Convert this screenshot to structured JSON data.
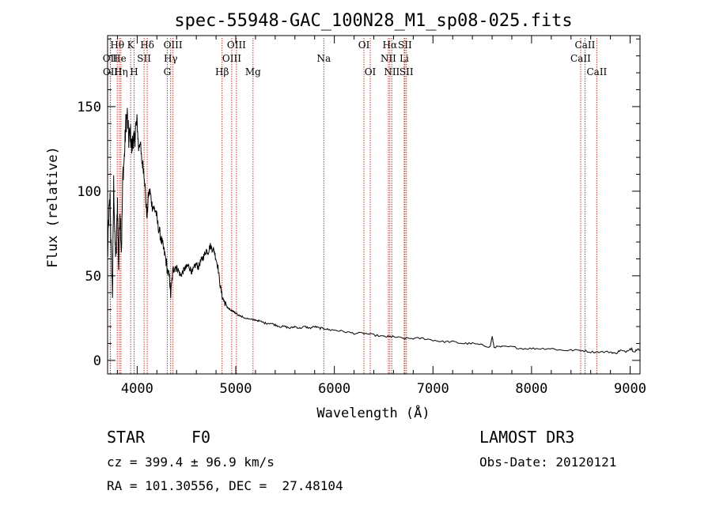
{
  "chart_data": {
    "type": "line",
    "title": "spec-55948-GAC_100N28_M1_sp08-025.fits",
    "xlabel": "Wavelength (Å)",
    "ylabel": "Flux (relative)",
    "xlim": [
      3700,
      9100
    ],
    "ylim": [
      -8,
      192
    ],
    "xticks": [
      4000,
      5000,
      6000,
      7000,
      8000,
      9000
    ],
    "xtick_labels": [
      "4000",
      "5000",
      "6000",
      "7000",
      "8000",
      "9000"
    ],
    "yticks": [
      0,
      50,
      100,
      150
    ],
    "ytick_labels": [
      "0",
      "50",
      "100",
      "150"
    ],
    "series": [
      {
        "name": "flux",
        "x": [
          3700,
          3712,
          3725,
          3737,
          3750,
          3762,
          3775,
          3787,
          3800,
          3812,
          3825,
          3840,
          3855,
          3870,
          3885,
          3900,
          3915,
          3930,
          3945,
          3960,
          3970,
          3985,
          4000,
          4015,
          4030,
          4045,
          4060,
          4075,
          4090,
          4101,
          4115,
          4130,
          4150,
          4170,
          4190,
          4210,
          4230,
          4250,
          4270,
          4290,
          4310,
          4330,
          4340,
          4360,
          4380,
          4400,
          4420,
          4440,
          4460,
          4480,
          4500,
          4520,
          4540,
          4560,
          4580,
          4600,
          4620,
          4640,
          4660,
          4680,
          4700,
          4720,
          4740,
          4760,
          4780,
          4800,
          4820,
          4840,
          4861,
          4880,
          4900,
          4920,
          4940,
          4960,
          4980,
          5000,
          5050,
          5100,
          5150,
          5200,
          5250,
          5300,
          5350,
          5400,
          5450,
          5500,
          5550,
          5600,
          5650,
          5700,
          5750,
          5800,
          5850,
          5893,
          5950,
          6000,
          6100,
          6200,
          6300,
          6400,
          6500,
          6563,
          6600,
          6700,
          6800,
          6900,
          7000,
          7100,
          7200,
          7300,
          7400,
          7500,
          7580,
          7600,
          7620,
          7700,
          7800,
          7900,
          8000,
          8100,
          8200,
          8300,
          8400,
          8500,
          8600,
          8700,
          8800,
          8850,
          8900,
          8950,
          9000,
          9050,
          9100
        ],
        "values": [
          60,
          85,
          95,
          62,
          40,
          105,
          70,
          60,
          95,
          55,
          90,
          65,
          110,
          120,
          140,
          145,
          130,
          135,
          125,
          132,
          128,
          138,
          140,
          125,
          130,
          118,
          115,
          108,
          92,
          85,
          98,
          100,
          92,
          90,
          88,
          80,
          75,
          70,
          65,
          60,
          52,
          48,
          38,
          52,
          56,
          55,
          53,
          50,
          52,
          54,
          55,
          56,
          54,
          52,
          55,
          57,
          55,
          58,
          60,
          62,
          65,
          64,
          68,
          66,
          65,
          60,
          55,
          45,
          38,
          35,
          33,
          31,
          30,
          29,
          29,
          28,
          26,
          25,
          24,
          24,
          23,
          22,
          22,
          21,
          20,
          20,
          19,
          20,
          19,
          20,
          19,
          20,
          19,
          19,
          18,
          18,
          17,
          16,
          16,
          15,
          14,
          14,
          14,
          13,
          13,
          13,
          12,
          11,
          11,
          10,
          10,
          9,
          8,
          14,
          8,
          8,
          8,
          7,
          7,
          7,
          7,
          6,
          6,
          6,
          5,
          5,
          5,
          4,
          6,
          5,
          7,
          6,
          6
        ]
      }
    ],
    "line_markers": [
      {
        "label": "Hθ",
        "wavelength": 3798,
        "row": 1
      },
      {
        "label": "OII",
        "wavelength": 3727,
        "row": 2
      },
      {
        "label": "He",
        "wavelength": 3820,
        "row": 2
      },
      {
        "label": "OII",
        "wavelength": 3729,
        "row": 3
      },
      {
        "label": "Hη",
        "wavelength": 3835,
        "row": 3
      },
      {
        "label": "K",
        "wavelength": 3934,
        "row": 1
      },
      {
        "label": "H",
        "wavelength": 3969,
        "row": 3
      },
      {
        "label": "Hδ",
        "wavelength": 4102,
        "row": 1
      },
      {
        "label": "SII",
        "wavelength": 4070,
        "row": 2
      },
      {
        "label": "OIII",
        "wavelength": 4363,
        "row": 1
      },
      {
        "label": "Hγ",
        "wavelength": 4340,
        "row": 2
      },
      {
        "label": "G",
        "wavelength": 4305,
        "row": 3
      },
      {
        "label": "OIII",
        "wavelength": 5007,
        "row": 1
      },
      {
        "label": "OIII",
        "wavelength": 4959,
        "row": 2
      },
      {
        "label": "Hβ",
        "wavelength": 4861,
        "row": 3
      },
      {
        "label": "Mg",
        "wavelength": 5175,
        "row": 3
      },
      {
        "label": "Na",
        "wavelength": 5893,
        "row": 2
      },
      {
        "label": "OI",
        "wavelength": 6300,
        "row": 1
      },
      {
        "label": "OI",
        "wavelength": 6364,
        "row": 3
      },
      {
        "label": "Hα",
        "wavelength": 6563,
        "row": 1
      },
      {
        "label": "SII",
        "wavelength": 6716,
        "row": 1
      },
      {
        "label": "NII",
        "wavelength": 6548,
        "row": 2
      },
      {
        "label": "Li",
        "wavelength": 6708,
        "row": 2
      },
      {
        "label": "NII",
        "wavelength": 6583,
        "row": 3
      },
      {
        "label": "SII",
        "wavelength": 6731,
        "row": 3
      },
      {
        "label": "CaII",
        "wavelength": 8542,
        "row": 1
      },
      {
        "label": "CaII",
        "wavelength": 8498,
        "row": 2
      },
      {
        "label": "CaII",
        "wavelength": 8662,
        "row": 3
      }
    ]
  },
  "info": {
    "object_class": "STAR",
    "subclass": "F0",
    "survey": "LAMOST DR3",
    "redshift_line": "cz = 399.4 ± 96.9 km/s",
    "obs_date_line": "Obs-Date: 20120121",
    "coords_line": "RA = 101.30556, DEC =  27.48104"
  },
  "colors": {
    "axis": "#000000",
    "spectrum": "#000000",
    "line_marker": "#c0392b"
  }
}
